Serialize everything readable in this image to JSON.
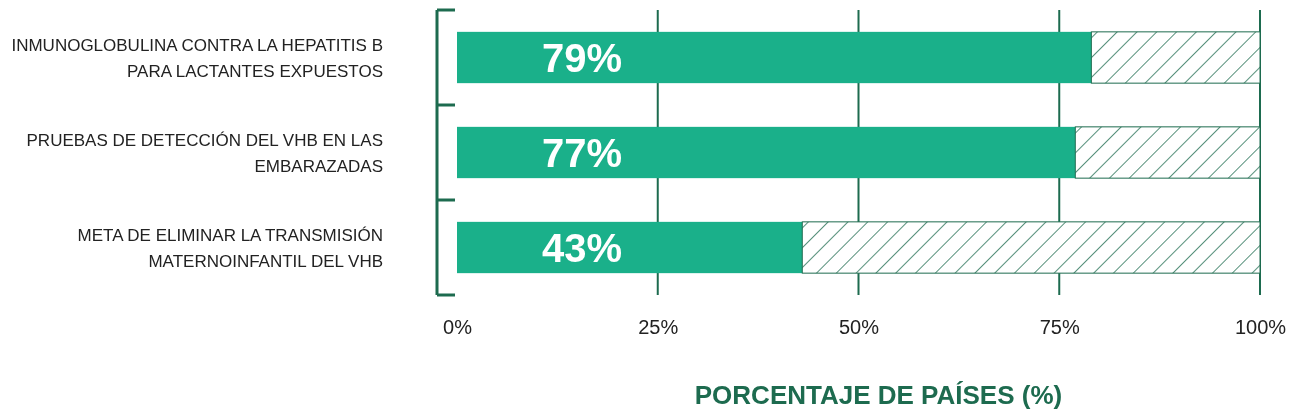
{
  "chart_data": {
    "type": "bar",
    "orientation": "horizontal",
    "stacked": true,
    "categories": [
      "INMUNOGLOBULINA CONTRA LA HEPATITIS B PARA LACTANTES EXPUESTOS",
      "PRUEBAS DE DETECCIÓN DEL VHB EN LAS EMBARAZADAS",
      "META DE ELIMINAR LA TRANSMISIÓN MATERNOINFANTIL DEL VHB"
    ],
    "series": [
      {
        "color": "#1ab08a",
        "values": [
          79,
          77,
          43
        ],
        "value_labels": [
          "79%",
          "77%",
          "43%"
        ]
      },
      {
        "color": "#1d6b4f",
        "values": [
          21,
          23,
          57
        ],
        "value_labels": [
          null,
          null,
          null
        ]
      }
    ],
    "xlim": [
      0,
      100
    ],
    "xticks": [
      {
        "value": 0,
        "label": "0%"
      },
      {
        "value": 25,
        "label": "25%"
      },
      {
        "value": 50,
        "label": "50%"
      },
      {
        "value": 75,
        "label": "75%"
      },
      {
        "value": 100,
        "label": "100%"
      }
    ],
    "xlabel": "PORCENTAJE DE PAÍSES (%)",
    "grid": "x"
  }
}
